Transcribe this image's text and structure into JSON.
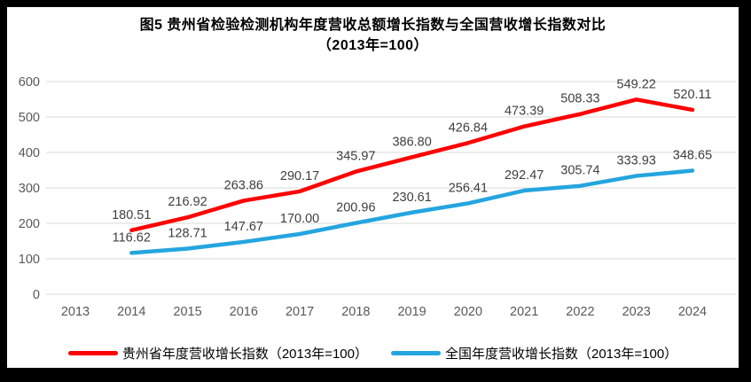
{
  "frame": {
    "outer_border_color": "#000000",
    "panel_background": "#FFFFFF"
  },
  "title": {
    "line1": "图5  贵州省检验检测机构年度营收总额增长指数与全国营收增长指数对比",
    "line2": "（2013年=100）"
  },
  "colors": {
    "gridline": "#D9D9D9",
    "axis_text": "#595959",
    "data_label_text": "#404040",
    "series_guizhou": "#FF0000",
    "series_national": "#25A5DF"
  },
  "chart_data": {
    "type": "line",
    "title": "图5  贵州省检验检测机构年度营收总额增长指数与全国营收增长指数对比（2013年=100）",
    "categories": [
      "2013",
      "2014",
      "2015",
      "2016",
      "2017",
      "2018",
      "2019",
      "2020",
      "2021",
      "2022",
      "2023",
      "2024"
    ],
    "series": [
      {
        "name": "贵州省年度营收增长指数（2013年=100）",
        "color": "#FF0000",
        "values": [
          null,
          180.51,
          216.92,
          263.86,
          290.17,
          345.97,
          386.8,
          426.84,
          473.39,
          508.33,
          549.22,
          520.11
        ]
      },
      {
        "name": "全国年度营收增长指数（2013年=100）",
        "color": "#25A5DF",
        "values": [
          null,
          116.62,
          128.71,
          147.67,
          170.0,
          200.96,
          230.61,
          256.41,
          292.47,
          305.74,
          333.93,
          348.65
        ]
      }
    ],
    "ylim": [
      0,
      600
    ],
    "yticks": [
      0,
      100,
      200,
      300,
      400,
      500,
      600
    ],
    "grid": true,
    "legend_position": "bottom",
    "data_labels": true,
    "label_decimals": 2
  }
}
